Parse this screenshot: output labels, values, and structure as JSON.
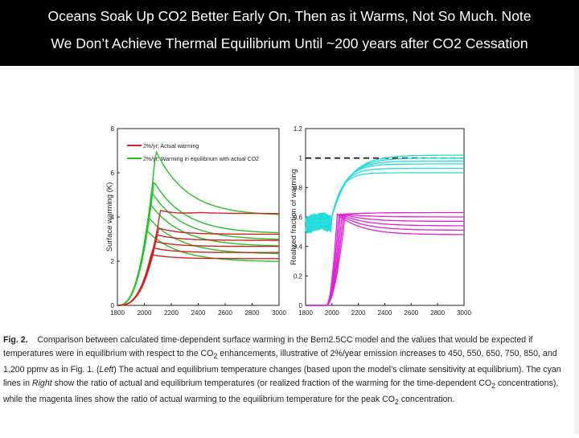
{
  "title": {
    "line1": "Oceans Soak Up CO2 Better Early On, Then as it Warms, Not So Much. Note",
    "line2": "We Don’t Achieve Thermal Equilibrium Until ~200 years after CO2 Cessation"
  },
  "colors": {
    "actual": "#d42020",
    "equilibrium": "#22c422",
    "cyan": "#22dcdc",
    "magenta": "#e020d8",
    "title_bg": "#000000",
    "title_text": "#ffffff"
  },
  "caption": {
    "fig_label": "Fig. 2.",
    "part1": "Comparison between calculated time-dependent surface warming in the Bern2.5CC model and the values that would be expected if temperatures were in equilibrium with respect to the CO",
    "sub1": "2",
    "part2": " enhancements, illustrative of 2%/year emission increases to 450, 550, 650, 750, 850, and 1,200 ppmv as in Fig. 1. (",
    "left_word": "Left",
    "part3": ") The actual and equilibrium temperature changes (based upon the model’s climate sensitivity at equilibrium). The cyan lines in ",
    "right_word": "Right",
    "part4": " show the ratio of actual and equilibrium temperatures (or realized fraction of the warming for the time-dependent CO",
    "sub2": "2",
    "part5": " concentrations), while the magenta lines show the ratio of actual warming to the equilibrium temperature for the peak CO",
    "sub3": "2",
    "part6": " concentration."
  },
  "chart_data": [
    {
      "type": "line",
      "panel": "left",
      "title": "",
      "xlabel": "",
      "ylabel": "Surface warming (K)",
      "xlim": [
        1800,
        3000
      ],
      "ylim": [
        0,
        8
      ],
      "xticks": [
        1800,
        2000,
        2200,
        2400,
        2600,
        2800,
        3000
      ],
      "yticks": [
        0,
        2,
        4,
        6,
        8
      ],
      "legend": {
        "placement": "top",
        "entries": [
          "2%/yr; Actual warming",
          "2%/yr; Warming in equilibrium with actual CO2"
        ]
      },
      "series": [
        {
          "name": "2%/yr; Actual warming",
          "color": "red",
          "scenario_peaks_K": [
            2.3,
            2.6,
            2.9,
            3.2,
            3.5,
            4.3
          ]
        },
        {
          "name": "2%/yr; Warming in equilibrium with actual CO2",
          "color": "green",
          "scenario_peaks_K": [
            3.4,
            4.0,
            4.6,
            5.1,
            5.6,
            7.0
          ]
        }
      ]
    },
    {
      "type": "line",
      "panel": "right",
      "title": "",
      "xlabel": "",
      "ylabel": "Realized fraction of warming",
      "xlim": [
        1800,
        3000
      ],
      "ylim": [
        0,
        1.2
      ],
      "xticks": [
        1800,
        2000,
        2200,
        2400,
        2600,
        2800,
        3000
      ],
      "yticks": [
        0,
        0.2,
        0.4,
        0.6,
        0.8,
        1,
        1.2
      ],
      "reference_line": 1,
      "series": [
        {
          "name": "",
          "color": "cyan",
          "values_end": [
            0.9,
            0.93,
            0.96,
            0.98,
            1.0,
            1.02
          ]
        },
        {
          "name": "",
          "color": "magenta",
          "values_end": [
            0.48,
            0.51,
            0.54,
            0.57,
            0.6,
            0.63
          ]
        }
      ]
    }
  ]
}
